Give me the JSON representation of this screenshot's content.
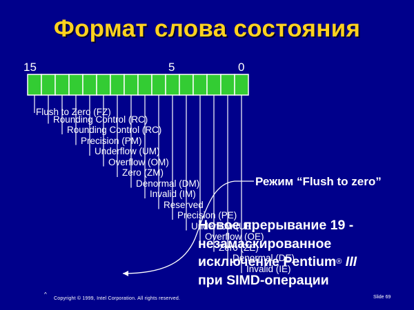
{
  "title": "Формат слова состояния",
  "bit_numbers": {
    "high": "15",
    "mid": "5",
    "low": "0"
  },
  "register": {
    "bit_count": 16,
    "fill_color": "#33cc33"
  },
  "fields": [
    {
      "bit": 0,
      "label": "Invalid (IE)"
    },
    {
      "bit": 1,
      "label": "Denormal (DE)"
    },
    {
      "bit": 2,
      "label": "Zero (ZE)"
    },
    {
      "bit": 3,
      "label": "Overflow (OE)"
    },
    {
      "bit": 4,
      "label": "Underflow (UE)"
    },
    {
      "bit": 5,
      "label": "Precision (PE)"
    },
    {
      "bit": 6,
      "label": "Reserved"
    },
    {
      "bit": 7,
      "label": "Invalid (IM)"
    },
    {
      "bit": 8,
      "label": "Denormal (DM)"
    },
    {
      "bit": 9,
      "label": "Zero (ZM)"
    },
    {
      "bit": 10,
      "label": "Overflow (OM)"
    },
    {
      "bit": 11,
      "label": "Underflow (UM)"
    },
    {
      "bit": 12,
      "label": "Precision (PM)"
    },
    {
      "bit": 13,
      "label": "Rounding Control (RC)"
    },
    {
      "bit": 14,
      "label": "Rounding Control (RC)"
    },
    {
      "bit": 15,
      "label": "Flush to Zero (FZ)"
    }
  ],
  "flush_mode_label": "Режим “Flush to zero”",
  "note": {
    "line1": "Новое прерывание 19 -",
    "line2": "незамаскированное",
    "line3_prefix": "исключение Pentium",
    "line3_reg": "®",
    "line3_suffix": "III",
    "line4": "при SIMD-операции"
  },
  "footer": {
    "mark": "^",
    "copyright": "Copyright © 1999, Intel Corporation. All rights reserved.",
    "slide": "Slide 69"
  },
  "colors": {
    "background": "#00008b",
    "title": "#ffd21f",
    "text": "#ffffff",
    "lines": "#ffffff"
  }
}
